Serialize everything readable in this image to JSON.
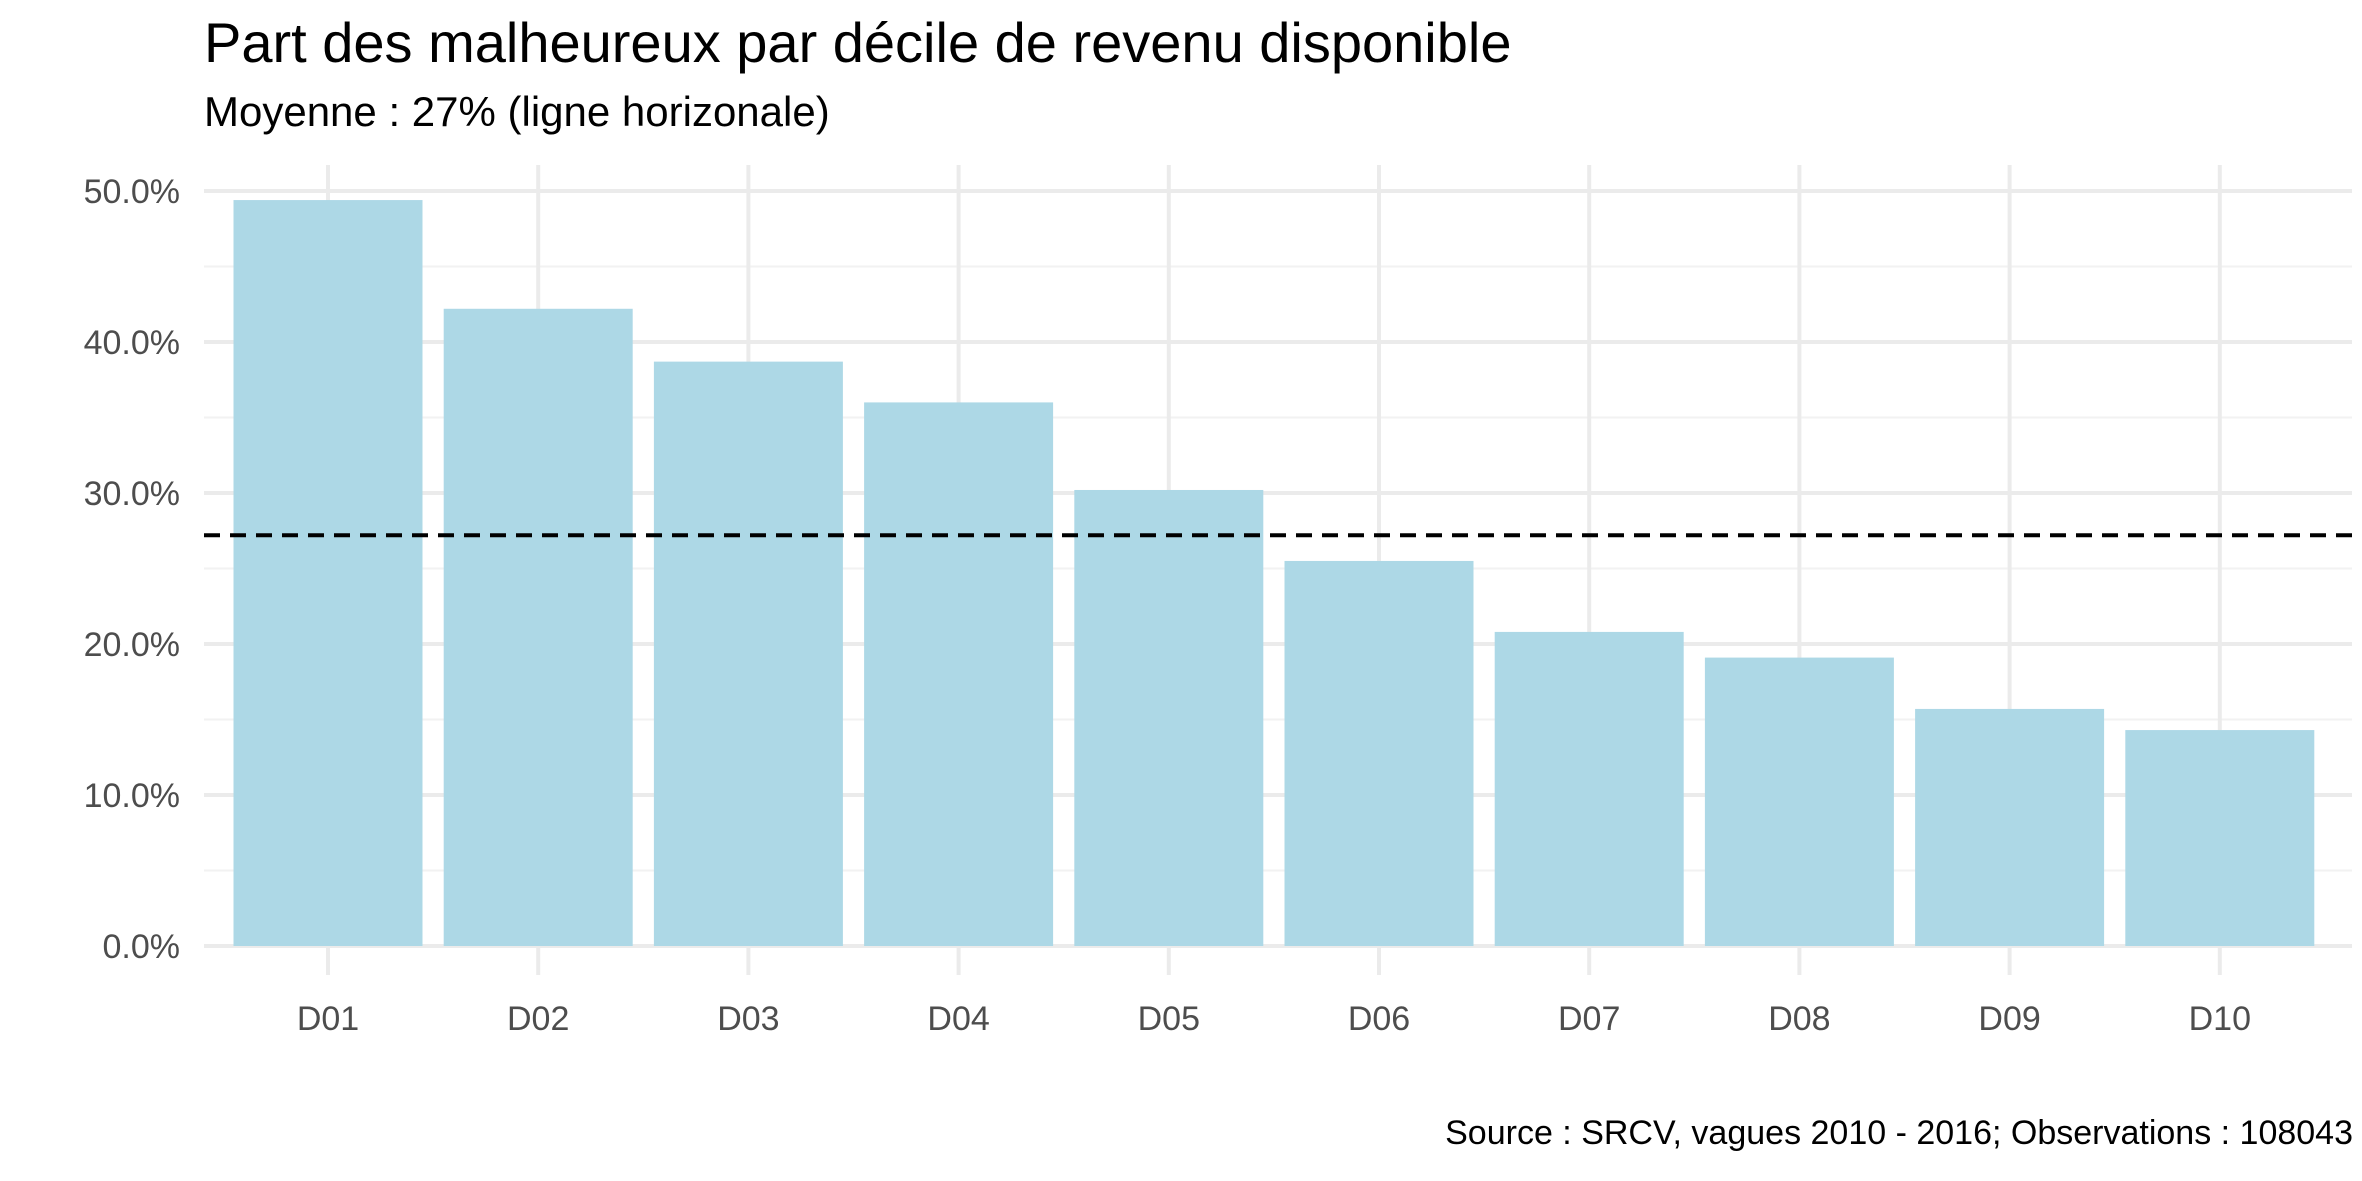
{
  "chart_data": {
    "type": "bar",
    "title": "Part des malheureux par décile de revenu disponible",
    "subtitle": "Moyenne : 27% (ligne horizonale)",
    "caption": "Source : SRCV, vagues 2010 - 2016; Observations : 108043",
    "xlabel": "",
    "ylabel": "",
    "categories": [
      "D01",
      "D02",
      "D03",
      "D04",
      "D05",
      "D06",
      "D07",
      "D08",
      "D09",
      "D10"
    ],
    "values": [
      0.494,
      0.422,
      0.387,
      0.36,
      0.302,
      0.255,
      0.208,
      0.191,
      0.157,
      0.143
    ],
    "ylim": [
      0,
      0.5
    ],
    "yticks": [
      0.0,
      0.1,
      0.2,
      0.3,
      0.4,
      0.5
    ],
    "ytick_labels": [
      "0.0%",
      "10.0%",
      "20.0%",
      "30.0%",
      "40.0%",
      "50.0%"
    ],
    "reference_line": {
      "value": 0.272,
      "style": "dashed",
      "color": "#000000"
    },
    "bar_color": "#add8e6",
    "grid": true,
    "legend": "none"
  }
}
